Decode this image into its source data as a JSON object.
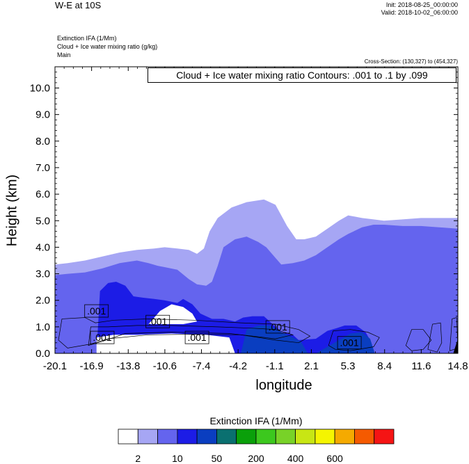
{
  "header": {
    "title": "W-E at 10S",
    "init": "Init: 2018-08-25_00:00:00",
    "valid": "Valid: 2018-10-02_06:00:00",
    "field1": "Extinction IFA   (1/Mm)",
    "field2": "Cloud + Ice water mixing ratio   (g/kg)",
    "field3": "Main",
    "cross_section": "Cross-Section: (130,327) to (454,327)"
  },
  "chart_data": {
    "type": "heatmap",
    "title": "Cloud + Ice water mixing ratio Contours: .001 to .1 by .099",
    "xlabel": "longitude",
    "ylabel": "Height (km)",
    "x_tick_labels": [
      "-20.1",
      "-16.9",
      "-13.8",
      "-10.6",
      "-7.4",
      "-4.2",
      "-1.1",
      "2.1",
      "5.3",
      "8.4",
      "11.6",
      "14.8"
    ],
    "xlim": [
      -20.1,
      14.8
    ],
    "y_ticks": [
      0.0,
      1.0,
      2.0,
      3.0,
      4.0,
      5.0,
      6.0,
      7.0,
      8.0,
      9.0,
      10.0
    ],
    "y_tick_labels": [
      "0.0",
      "1.0",
      "2.0",
      "3.0",
      "4.0",
      "5.0",
      "6.0",
      "7.0",
      "8.0",
      "9.0",
      "10.0"
    ],
    "ylim": [
      0.0,
      10.8
    ],
    "grid": false,
    "fill_layers": [
      {
        "level": "2-5",
        "color": "#a6a6f4",
        "top": [
          [
            -20.1,
            3.35
          ],
          [
            -19.0,
            3.4
          ],
          [
            -17.5,
            3.5
          ],
          [
            -16.0,
            3.65
          ],
          [
            -14.5,
            3.8
          ],
          [
            -13.0,
            3.9
          ],
          [
            -11.5,
            3.95
          ],
          [
            -10.6,
            4.0
          ],
          [
            -9.5,
            3.95
          ],
          [
            -8.5,
            3.9
          ],
          [
            -7.8,
            3.75
          ],
          [
            -7.2,
            3.95
          ],
          [
            -6.7,
            4.6
          ],
          [
            -6.0,
            5.1
          ],
          [
            -4.8,
            5.5
          ],
          [
            -3.5,
            5.7
          ],
          [
            -2.0,
            5.8
          ],
          [
            -1.0,
            5.6
          ],
          [
            0.0,
            4.8
          ],
          [
            0.8,
            4.3
          ],
          [
            1.5,
            4.3
          ],
          [
            2.5,
            4.4
          ],
          [
            3.5,
            4.7
          ],
          [
            4.5,
            5.0
          ],
          [
            5.3,
            5.2
          ],
          [
            6.5,
            5.1
          ],
          [
            7.5,
            5.05
          ],
          [
            8.4,
            5.0
          ],
          [
            10.0,
            5.05
          ],
          [
            11.6,
            5.1
          ],
          [
            14.8,
            5.1
          ]
        ]
      },
      {
        "level": "5-10",
        "color": "#6464ee",
        "top": [
          [
            -20.1,
            2.95
          ],
          [
            -19.0,
            3.0
          ],
          [
            -17.5,
            3.05
          ],
          [
            -16.0,
            3.2
          ],
          [
            -14.5,
            3.4
          ],
          [
            -13.0,
            3.5
          ],
          [
            -12.0,
            3.4
          ],
          [
            -11.2,
            3.3
          ],
          [
            -10.6,
            3.25
          ],
          [
            -9.5,
            3.15
          ],
          [
            -8.5,
            2.8
          ],
          [
            -7.8,
            2.6
          ],
          [
            -7.0,
            2.55
          ],
          [
            -6.5,
            2.7
          ],
          [
            -6.0,
            3.3
          ],
          [
            -5.5,
            4.0
          ],
          [
            -4.5,
            4.3
          ],
          [
            -3.5,
            4.4
          ],
          [
            -2.5,
            4.2
          ],
          [
            -1.8,
            4.0
          ],
          [
            -1.0,
            3.6
          ],
          [
            -0.5,
            3.35
          ],
          [
            0.5,
            3.4
          ],
          [
            1.5,
            3.5
          ],
          [
            2.5,
            3.7
          ],
          [
            3.5,
            4.0
          ],
          [
            4.5,
            4.3
          ],
          [
            5.3,
            4.5
          ],
          [
            6.5,
            4.75
          ],
          [
            7.5,
            4.85
          ],
          [
            8.4,
            4.85
          ],
          [
            10.0,
            4.8
          ],
          [
            11.6,
            4.8
          ],
          [
            14.8,
            4.7
          ]
        ]
      },
      {
        "level": "10-20",
        "color": "#1c1ce6",
        "top": [
          [
            -20.1,
            0.0
          ],
          [
            -20.0,
            0.0
          ],
          [
            -16.5,
            0.0
          ],
          [
            -16.2,
            2.35
          ],
          [
            -15.5,
            2.65
          ],
          [
            -14.8,
            2.7
          ],
          [
            -14.0,
            2.55
          ],
          [
            -13.3,
            2.15
          ],
          [
            -12.5,
            2.1
          ],
          [
            -11.5,
            2.05
          ],
          [
            -10.6,
            2.0
          ],
          [
            -9.5,
            1.9
          ],
          [
            -9.0,
            2.05
          ],
          [
            -8.2,
            1.85
          ],
          [
            -7.5,
            1.5
          ],
          [
            -6.5,
            1.3
          ],
          [
            -5.5,
            1.3
          ],
          [
            -5.0,
            1.25
          ],
          [
            -4.5,
            1.2
          ],
          [
            -3.8,
            1.35
          ],
          [
            -3.0,
            1.4
          ],
          [
            -2.0,
            1.4
          ],
          [
            -1.5,
            1.2
          ],
          [
            -0.5,
            0.8
          ],
          [
            0.5,
            0.7
          ],
          [
            1.0,
            0.5
          ],
          [
            2.5,
            0.55
          ],
          [
            3.5,
            0.85
          ],
          [
            4.3,
            0.95
          ],
          [
            5.0,
            1.05
          ],
          [
            6.0,
            1.05
          ],
          [
            6.8,
            0.8
          ],
          [
            7.2,
            0.5
          ],
          [
            7.6,
            0.0
          ],
          [
            14.8,
            0.0
          ]
        ]
      },
      {
        "level": "20-50",
        "color": "#0a3ec0",
        "top": [
          [
            -4.5,
            0.0
          ],
          [
            -4.0,
            0.0
          ],
          [
            -3.5,
            0.9
          ],
          [
            -2.5,
            1.05
          ],
          [
            -1.5,
            1.05
          ],
          [
            -0.5,
            0.8
          ],
          [
            0.5,
            0.6
          ],
          [
            1.2,
            0.45
          ],
          [
            1.8,
            0.0
          ],
          [
            2.5,
            0.0
          ],
          [
            4.5,
            0.5
          ],
          [
            5.5,
            0.75
          ],
          [
            6.5,
            0.8
          ],
          [
            7.2,
            0.55
          ],
          [
            7.6,
            0.0
          ]
        ]
      }
    ],
    "white_gaps": [
      {
        "name": "cloud-free-pocket",
        "poly": [
          [
            -12.0,
            1.1
          ],
          [
            -11.0,
            1.6
          ],
          [
            -10.0,
            1.85
          ],
          [
            -9.0,
            1.75
          ],
          [
            -8.2,
            1.5
          ],
          [
            -7.8,
            1.2
          ],
          [
            -9.0,
            1.1
          ]
        ]
      },
      {
        "name": "cloud-free-near-surface",
        "poly": [
          [
            -16.5,
            0.0
          ],
          [
            -16.5,
            0.6
          ],
          [
            -15.0,
            0.7
          ],
          [
            -13.0,
            0.7
          ],
          [
            -10.0,
            0.75
          ],
          [
            -7.0,
            0.7
          ],
          [
            -5.0,
            0.6
          ],
          [
            -4.5,
            0.0
          ]
        ]
      }
    ],
    "contour_labels": [
      {
        "label": ".001",
        "x": -16.5,
        "y": 1.6
      },
      {
        "label": ".001",
        "x": -11.2,
        "y": 1.2
      },
      {
        "label": ".001",
        "x": -16.0,
        "y": 0.6
      },
      {
        "label": ".001",
        "x": -7.8,
        "y": 0.6
      },
      {
        "label": ".001",
        "x": -0.8,
        "y": 1.0
      },
      {
        "label": ".001",
        "x": 5.4,
        "y": 0.4
      }
    ],
    "colorbar": {
      "title": "Extinction IFA  (1/Mm)",
      "colors": [
        "#ffffff",
        "#a6a6f4",
        "#6464ee",
        "#1c1ce6",
        "#0a3ec0",
        "#0a7070",
        "#0aa00a",
        "#3cc81e",
        "#78d228",
        "#c8e614",
        "#f5f500",
        "#f5aa00",
        "#f55a00",
        "#f51414"
      ],
      "labels": [
        "2",
        "10",
        "50",
        "200",
        "400",
        "600"
      ]
    }
  }
}
